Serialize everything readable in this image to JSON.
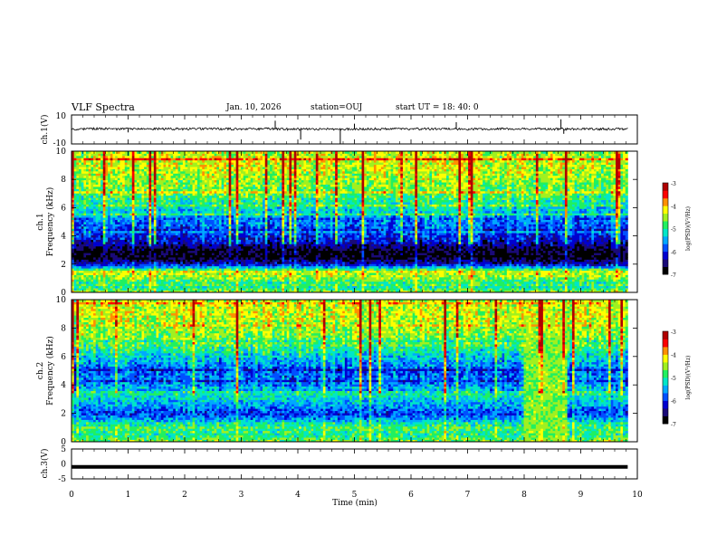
{
  "header": {
    "title": "VLF Spectra",
    "date": "Jan. 10, 2026",
    "station": "station=OUJ",
    "start": "start UT =  18: 40: 0"
  },
  "colorscale": [
    "#000000",
    "#1a0a78",
    "#0000d0",
    "#0050ff",
    "#00a8ff",
    "#00e6c8",
    "#20f060",
    "#a0f020",
    "#ffff00",
    "#ff9000",
    "#ff0000",
    "#b00000"
  ],
  "chart_data": [
    {
      "type": "line",
      "panel": "ch1-waveform",
      "ylabel": "ch.1(V)",
      "ylim": [
        -10,
        10
      ],
      "yticks": [
        "10",
        "-10"
      ],
      "x": [
        0,
        0.5,
        1,
        1.5,
        2,
        2.5,
        3,
        3.5,
        4,
        4.5,
        5,
        5.5,
        6,
        6.5,
        7,
        7.5,
        8,
        8.5,
        9,
        9.5,
        9.83
      ],
      "y": [
        0.3,
        0.5,
        0.2,
        0.4,
        0.3,
        0.5,
        0.2,
        0.4,
        0.1,
        0.3,
        0.2,
        0.4,
        0.3,
        0.5,
        0.2,
        0.4,
        0.3,
        0.2,
        0.4,
        0.3,
        0.3
      ],
      "spikes": [
        {
          "x": 1.0,
          "y": -2
        },
        {
          "x": 3.6,
          "y": 6
        },
        {
          "x": 4.05,
          "y": -7
        },
        {
          "x": 4.75,
          "y": -10
        },
        {
          "x": 5.0,
          "y": 4
        },
        {
          "x": 6.8,
          "y": 5
        },
        {
          "x": 8.65,
          "y": 7
        },
        {
          "x": 8.7,
          "y": -3
        }
      ]
    },
    {
      "type": "heatmap",
      "panel": "ch1-spectrogram",
      "ylabel_ch": "ch.1",
      "ylabel": "Frequency (kHz)",
      "ylim": [
        0,
        10
      ],
      "xlim": [
        0,
        9.83
      ],
      "yticks": [
        "0",
        "2",
        "4",
        "6",
        "8",
        "10"
      ],
      "colorbar_label": "log(PSD)(V²/Hz)",
      "colorbar_range": [
        -7,
        -3
      ],
      "colorbar_ticks": [
        "-3",
        "-4",
        "-5",
        "-6",
        "-7"
      ],
      "level_by_freq": {
        "freq_khz": [
          0,
          0.5,
          1,
          1.5,
          2,
          2.5,
          3,
          3.5,
          4,
          5,
          6,
          7,
          8,
          9,
          10
        ],
        "log_psd": [
          -4.5,
          -5.2,
          -4.6,
          -4.3,
          -6.2,
          -6.9,
          -6.8,
          -6.3,
          -6.0,
          -5.7,
          -5.2,
          -4.7,
          -4.5,
          -4.3,
          -4.4
        ]
      }
    },
    {
      "type": "heatmap",
      "panel": "ch2-spectrogram",
      "ylabel_ch": "ch.2",
      "ylabel": "Frequency (kHz)",
      "ylim": [
        0,
        10
      ],
      "xlim": [
        0,
        9.83
      ],
      "yticks": [
        "0",
        "2",
        "4",
        "6",
        "8",
        "10"
      ],
      "colorbar_label": "log(PSD)(V²/Hz)",
      "colorbar_range": [
        -7,
        -3
      ],
      "colorbar_ticks": [
        "-3",
        "-4",
        "-5",
        "-6",
        "-7"
      ],
      "level_by_freq": {
        "freq_khz": [
          0,
          0.5,
          1,
          1.5,
          2,
          2.5,
          3,
          3.5,
          4,
          5,
          6,
          7,
          8,
          9,
          10
        ],
        "log_psd": [
          -4.6,
          -5.0,
          -4.8,
          -5.4,
          -6.0,
          -5.6,
          -5.3,
          -5.0,
          -5.6,
          -5.8,
          -5.3,
          -4.7,
          -4.5,
          -4.3,
          -4.4
        ]
      },
      "event": {
        "x_start": 8.0,
        "x_end": 8.75,
        "log_psd": -4.6
      }
    },
    {
      "type": "line",
      "panel": "ch3-waveform",
      "ylabel": "ch.3(V)",
      "ylim": [
        -5,
        5
      ],
      "yticks": [
        "5",
        "0",
        "-5"
      ],
      "x": [
        0,
        9.83
      ],
      "y": [
        -1,
        -1
      ]
    }
  ],
  "xaxis": {
    "label": "Time (min)",
    "xlim": [
      0,
      10
    ],
    "ticks": [
      "0",
      "1",
      "2",
      "3",
      "4",
      "5",
      "6",
      "7",
      "8",
      "9",
      "10"
    ]
  }
}
